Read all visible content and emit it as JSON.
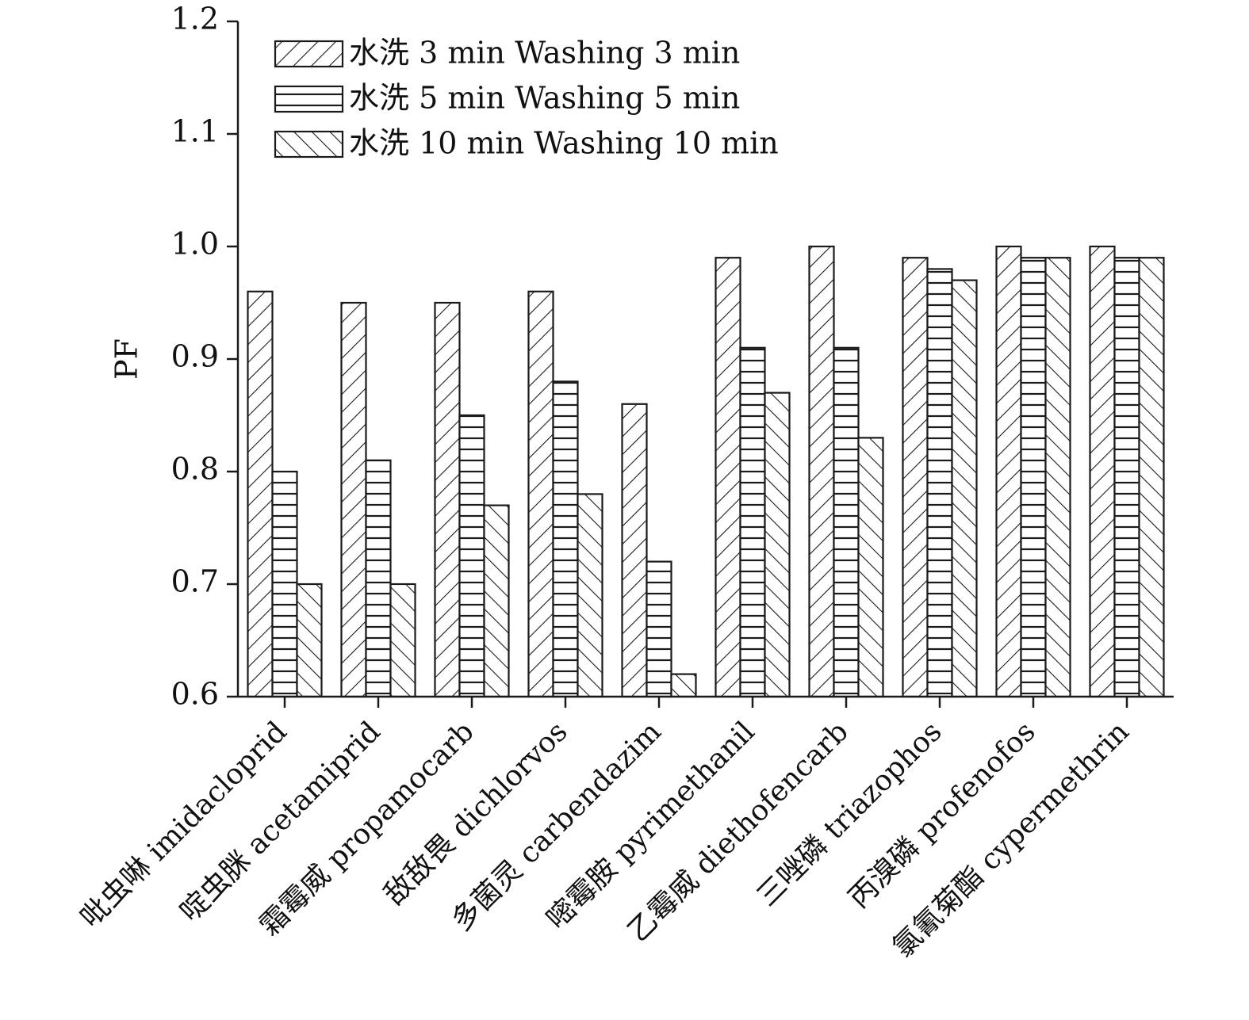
{
  "chart_data": {
    "type": "bar",
    "title": "",
    "xlabel": "",
    "ylabel": "PF",
    "ylim": [
      0.6,
      1.2
    ],
    "yticks": [
      "0.6",
      "0.7",
      "0.8",
      "0.9",
      "1.0",
      "1.1",
      "1.2"
    ],
    "grid": false,
    "legend_position": "top-left",
    "categories": [
      "吡虫啉 imidacloprid",
      "啶虫脒 acetamiprid",
      "霜霉威 propamocarb",
      "敌敌畏 dichlorvos",
      "多菌灵 carbendazim",
      "嘧霉胺 pyrimethanil",
      "乙霉威 diethofencarb",
      "三唑磷 triazophos",
      "丙溴磷 profenofos",
      "氯氰菊酯 cypermethrin"
    ],
    "series": [
      {
        "name": "水洗 3 min Washing 3 min",
        "pattern": "forward-diagonal",
        "values": [
          0.96,
          0.95,
          0.95,
          0.96,
          0.86,
          0.99,
          1.0,
          0.99,
          1.0,
          1.0
        ]
      },
      {
        "name": "水洗 5 min Washing 5 min",
        "pattern": "horizontal",
        "values": [
          0.8,
          0.81,
          0.85,
          0.88,
          0.72,
          0.91,
          0.91,
          0.98,
          0.99,
          0.99
        ]
      },
      {
        "name": "水洗 10 min Washing 10 min",
        "pattern": "backward-diagonal",
        "values": [
          0.7,
          0.7,
          0.77,
          0.78,
          0.62,
          0.87,
          0.83,
          0.97,
          0.99,
          0.99
        ]
      }
    ],
    "colors": {
      "stroke": "#1a1a1a",
      "fill": "#ffffff"
    }
  }
}
